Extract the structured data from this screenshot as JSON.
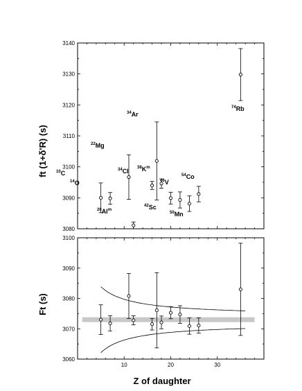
{
  "chart_data": [
    {
      "type": "scatter",
      "panel": "top",
      "ylabel": "ft (1+δ'R) (s)",
      "ylim": [
        3080,
        3140
      ],
      "yticks": [
        3080,
        3090,
        3100,
        3110,
        3120,
        3130,
        3140
      ],
      "xlim": [
        0,
        40
      ],
      "points": [
        {
          "name": "10C",
          "mass": "10",
          "sym": "C",
          "meta": "",
          "x": 5,
          "y": 3090.0,
          "err": 4.8
        },
        {
          "name": "14O",
          "mass": "14",
          "sym": "O",
          "meta": "",
          "x": 7,
          "y": 3089.8,
          "err": 1.9
        },
        {
          "name": "22Mg",
          "mass": "22",
          "sym": "Mg",
          "meta": "",
          "x": 11,
          "y": 3096.7,
          "err": 7.2
        },
        {
          "name": "26Alm",
          "mass": "26",
          "sym": "Al",
          "meta": "m",
          "x": 12,
          "y": 3081.1,
          "err": 1.1
        },
        {
          "name": "34Cl",
          "mass": "34",
          "sym": "Cl",
          "meta": "",
          "x": 16,
          "y": 3094.0,
          "err": 1.3
        },
        {
          "name": "34Ar",
          "mass": "34",
          "sym": "Ar",
          "meta": "",
          "x": 17,
          "y": 3101.9,
          "err": 12.6
        },
        {
          "name": "38Km",
          "mass": "38",
          "sym": "K",
          "meta": "m",
          "x": 18,
          "y": 3094.6,
          "err": 1.5
        },
        {
          "name": "42Sc",
          "mass": "42",
          "sym": "Sc",
          "meta": "",
          "x": 20,
          "y": 3089.9,
          "err": 1.9
        },
        {
          "name": "46V",
          "mass": "46",
          "sym": "V",
          "meta": "",
          "x": 22,
          "y": 3089.3,
          "err": 2.6
        },
        {
          "name": "50Mn",
          "mass": "50",
          "sym": "Mn",
          "meta": "",
          "x": 24,
          "y": 3088.1,
          "err": 2.5
        },
        {
          "name": "54Co",
          "mass": "54",
          "sym": "Co",
          "meta": "",
          "x": 26,
          "y": 3091.2,
          "err": 2.5
        },
        {
          "name": "74Rb",
          "mass": "74",
          "sym": "Rb",
          "meta": "",
          "x": 35,
          "y": 3129.8,
          "err": 8.4
        }
      ]
    },
    {
      "type": "scatter",
      "panel": "bottom",
      "ylabel": "Ft (s)",
      "xlabel": "Z of daughter",
      "ylim": [
        3060,
        3100
      ],
      "yticks": [
        3060,
        3070,
        3080,
        3090,
        3100
      ],
      "xlim": [
        0,
        40
      ],
      "xticks": [
        10,
        20,
        30
      ],
      "average_band": {
        "center": 3073.0,
        "halfwidth": 0.8
      },
      "envelope": {
        "description": "upper/lower curves converging toward band with increasing Z"
      },
      "points": [
        {
          "x": 5,
          "y": 3073.0,
          "err": 4.9
        },
        {
          "x": 7,
          "y": 3071.8,
          "err": 2.5
        },
        {
          "x": 11,
          "y": 3080.8,
          "err": 7.4
        },
        {
          "x": 12,
          "y": 3072.8,
          "err": 1.5
        },
        {
          "x": 16,
          "y": 3071.5,
          "err": 1.9
        },
        {
          "x": 17,
          "y": 3076.1,
          "err": 12.4
        },
        {
          "x": 18,
          "y": 3072.1,
          "err": 2.1
        },
        {
          "x": 20,
          "y": 3075.3,
          "err": 2.0
        },
        {
          "x": 22,
          "y": 3074.7,
          "err": 2.9
        },
        {
          "x": 24,
          "y": 3070.9,
          "err": 2.7
        },
        {
          "x": 26,
          "y": 3071.1,
          "err": 2.5
        },
        {
          "x": 35,
          "y": 3083.0,
          "err": 15.2
        }
      ]
    }
  ]
}
